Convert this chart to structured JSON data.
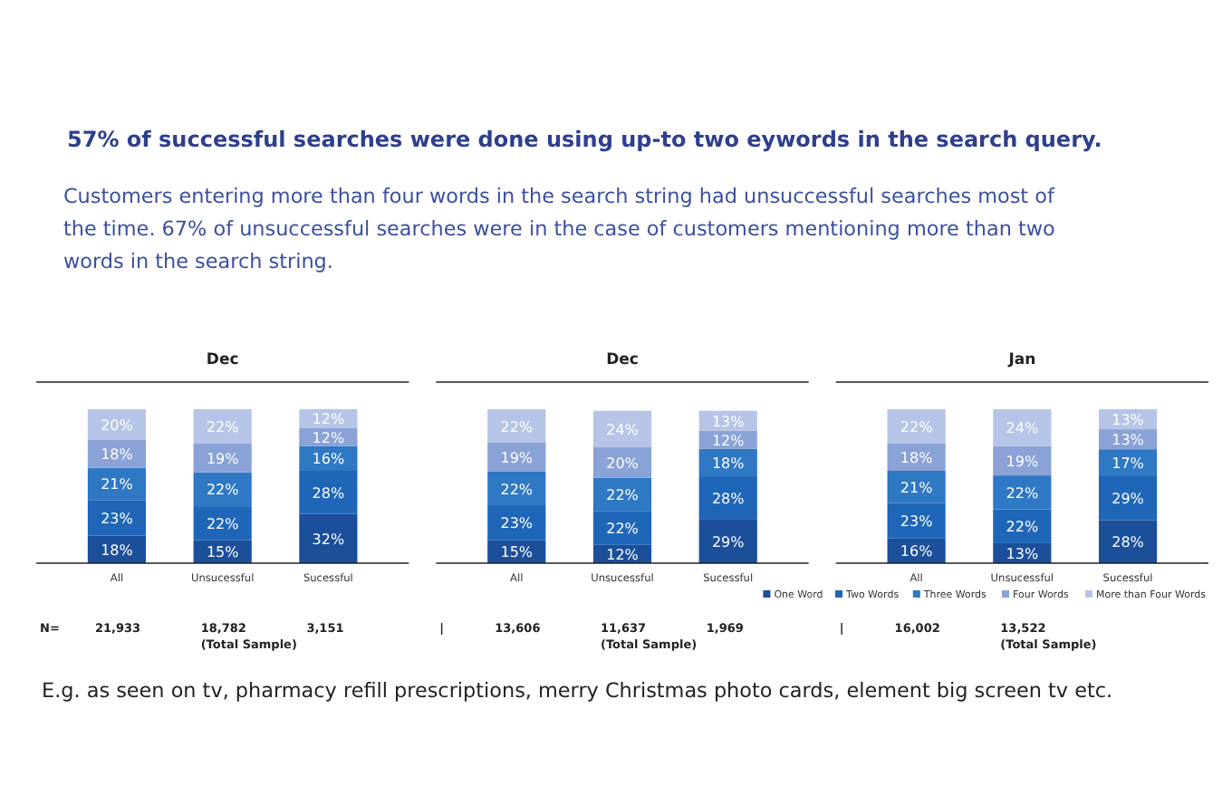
{
  "chart_data": [
    {
      "type": "other",
      "title": "57% of successful searches were done using up-to two eywords in the search query.",
      "subtitle": "Customers entering more than four words in the search string had unsuccessful searches most of the time. 67% of unsuccessful searches were in the case of customers mentioning more than two words in the search string.",
      "annotations": [
        "E.g. as seen on tv, pharmacy refill prescriptions, merry Christmas photo cards, element big screen tv etc."
      ]
    },
    {
      "type": "bar",
      "stacked": true,
      "title": "Dec",
      "categories": [
        "All",
        "Unsucessful",
        "Sucessful"
      ],
      "legend": false,
      "series": [
        {
          "color": "#1b4f9a",
          "values": [
            18,
            15,
            32
          ],
          "value_labels": [
            "18%",
            "15%",
            "32%"
          ]
        },
        {
          "color": "#1f66b8",
          "values": [
            23,
            22,
            28
          ],
          "value_labels": [
            "23%",
            "22%",
            "28%"
          ]
        },
        {
          "color": "#2f78c4",
          "values": [
            21,
            22,
            16
          ],
          "value_labels": [
            "21%",
            "22%",
            "16%"
          ]
        },
        {
          "color": "#8aa2d6",
          "values": [
            18,
            19,
            12
          ],
          "value_labels": [
            "18%",
            "19%",
            "12%"
          ]
        },
        {
          "color": "#b6c5e7",
          "values": [
            20,
            22,
            12
          ],
          "value_labels": [
            "20%",
            "22%",
            "12%"
          ]
        }
      ],
      "annotations": [
        "N=",
        "21,933",
        "18,782\n(Total Sample)",
        "3,151"
      ]
    },
    {
      "type": "bar",
      "stacked": true,
      "title": "Dec",
      "categories": [
        "All",
        "Unsucessful",
        "Sucessful"
      ],
      "legend": false,
      "series": [
        {
          "color": "#1b4f9a",
          "values": [
            15,
            12,
            29
          ],
          "value_labels": [
            "15%",
            "12%",
            "29%"
          ]
        },
        {
          "color": "#1f66b8",
          "values": [
            23,
            22,
            28
          ],
          "value_labels": [
            "23%",
            "22%",
            "28%"
          ]
        },
        {
          "color": "#2f78c4",
          "values": [
            22,
            22,
            18
          ],
          "value_labels": [
            "22%",
            "22%",
            "18%"
          ]
        },
        {
          "color": "#8aa2d6",
          "values": [
            19,
            20,
            12
          ],
          "value_labels": [
            "19%",
            "20%",
            "12%"
          ]
        },
        {
          "color": "#b6c5e7",
          "values": [
            22,
            24,
            13
          ],
          "value_labels": [
            "22%",
            "24%",
            "13%"
          ]
        }
      ],
      "annotations": [
        "|",
        "13,606",
        "11,637\n(Total Sample)",
        "1,969"
      ]
    },
    {
      "type": "bar",
      "stacked": true,
      "title": "Jan",
      "categories": [
        "All",
        "Unsucessful",
        "Sucessful"
      ],
      "legend": "bottom",
      "series": [
        {
          "name": "One Word",
          "color": "#1b4f9a",
          "values": [
            16,
            13,
            28
          ],
          "value_labels": [
            "16%",
            "13%",
            "28%"
          ]
        },
        {
          "name": "Two Words",
          "color": "#1f66b8",
          "values": [
            23,
            22,
            29
          ],
          "value_labels": [
            "23%",
            "22%",
            "29%"
          ]
        },
        {
          "name": "Three Words",
          "color": "#2f78c4",
          "values": [
            21,
            22,
            17
          ],
          "value_labels": [
            "21%",
            "22%",
            "17%"
          ]
        },
        {
          "name": "Four Words",
          "color": "#8aa2d6",
          "values": [
            18,
            19,
            13
          ],
          "value_labels": [
            "18%",
            "19%",
            "13%"
          ]
        },
        {
          "name": "More than Four Words",
          "color": "#b6c5e7",
          "values": [
            22,
            24,
            13
          ],
          "value_labels": [
            "22%",
            "24%",
            "13%"
          ]
        }
      ],
      "annotations": [
        "|",
        "16,002",
        "13,522\n(Total Sample)"
      ]
    }
  ]
}
